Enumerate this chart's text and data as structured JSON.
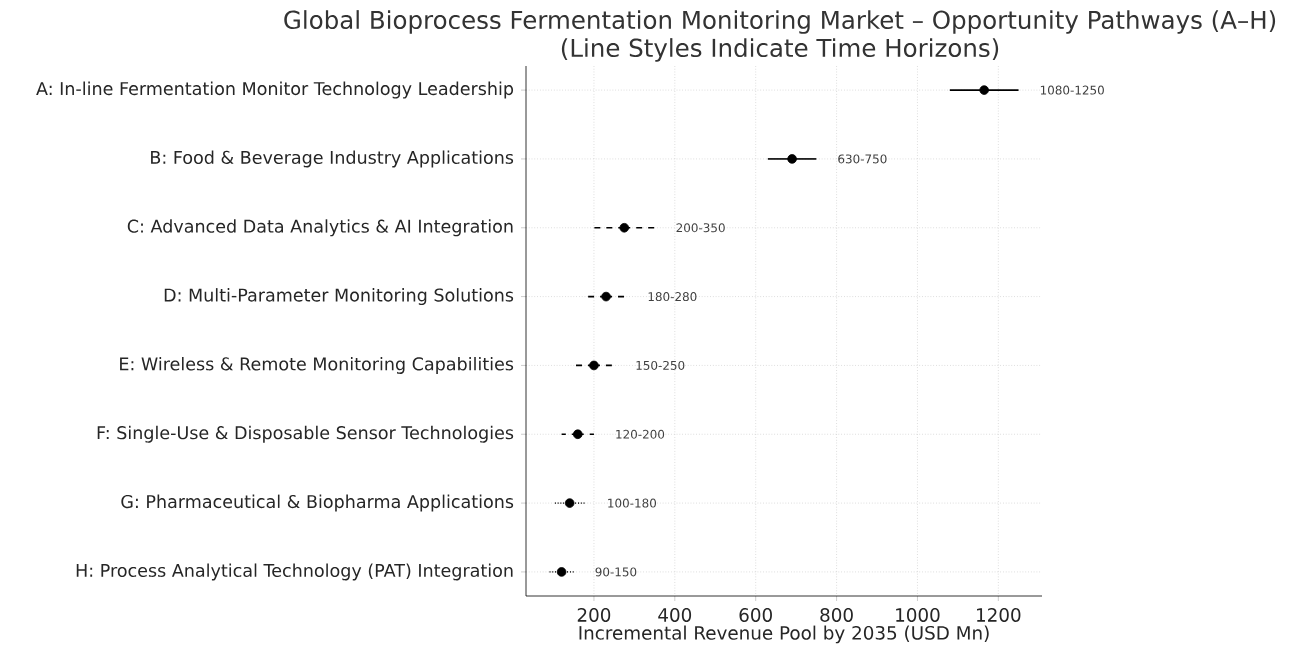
{
  "chart_data": {
    "type": "scatter",
    "orientation": "horizontal",
    "title": "Global Bioprocess Fermentation Monitoring Market – Opportunity Pathways (A–H)",
    "subtitle": "(Line Styles Indicate Time Horizons)",
    "xlabel": "Incremental Revenue Pool by 2035 (USD Mn)",
    "categories": [
      "A: In-line Fermentation Monitor Technology Leadership",
      "B: Food & Beverage Industry Applications",
      "C: Advanced Data Analytics & AI Integration",
      "D: Multi-Parameter Monitoring Solutions",
      "E: Wireless & Remote Monitoring Capabilities",
      "F: Single-Use & Disposable Sensor Technologies",
      "G: Pharmaceutical & Biopharma Applications",
      "H: Process Analytical Technology (PAT) Integration"
    ],
    "series": [
      {
        "color": "#000000",
        "line_style": "solid",
        "values": [
          1165,
          690,
          null,
          null,
          null,
          null,
          null,
          null
        ],
        "errors": [
          [
            1080,
            1250
          ],
          [
            630,
            750
          ],
          null,
          null,
          null,
          null,
          null,
          null
        ]
      },
      {
        "color": "#000000",
        "line_style": "dashed",
        "values": [
          null,
          null,
          275,
          230,
          null,
          null,
          null,
          null
        ],
        "errors": [
          null,
          null,
          [
            200,
            350
          ],
          [
            180,
            280
          ],
          null,
          null,
          null,
          null
        ]
      },
      {
        "color": "#000000",
        "line_style": "dashed",
        "values": [
          null,
          null,
          null,
          null,
          200,
          160,
          null,
          null
        ],
        "errors": [
          null,
          null,
          null,
          null,
          [
            150,
            250
          ],
          [
            120,
            200
          ],
          null,
          null
        ]
      },
      {
        "color": "#000000",
        "line_style": "dotted",
        "values": [
          null,
          null,
          null,
          null,
          null,
          null,
          140,
          120
        ],
        "errors": [
          null,
          null,
          null,
          null,
          null,
          null,
          [
            100,
            180
          ],
          [
            90,
            150
          ]
        ]
      }
    ],
    "annotations": [
      {
        "text": "1080-1250",
        "x": 1250,
        "y": "A: In-line Fermentation Monitor Technology Leadership"
      },
      {
        "text": "630-750",
        "x": 750,
        "y": "B: Food & Beverage Industry Applications"
      },
      {
        "text": "200-350",
        "x": 350,
        "y": "C: Advanced Data Analytics & AI Integration"
      },
      {
        "text": "180-280",
        "x": 280,
        "y": "D: Multi-Parameter Monitoring Solutions"
      },
      {
        "text": "150-250",
        "x": 250,
        "y": "E: Wireless & Remote Monitoring Capabilities"
      },
      {
        "text": "120-200",
        "x": 200,
        "y": "F: Single-Use & Disposable Sensor Technologies"
      },
      {
        "text": "100-180",
        "x": 180,
        "y": "G: Pharmaceutical & Biopharma Applications"
      },
      {
        "text": "90-150",
        "x": 150,
        "y": "H: Process Analytical Technology (PAT) Integration"
      }
    ],
    "grid": true,
    "xlim": [
      32,
      1308
    ],
    "xticks": [
      200,
      400,
      600,
      800,
      1000,
      1200
    ]
  }
}
